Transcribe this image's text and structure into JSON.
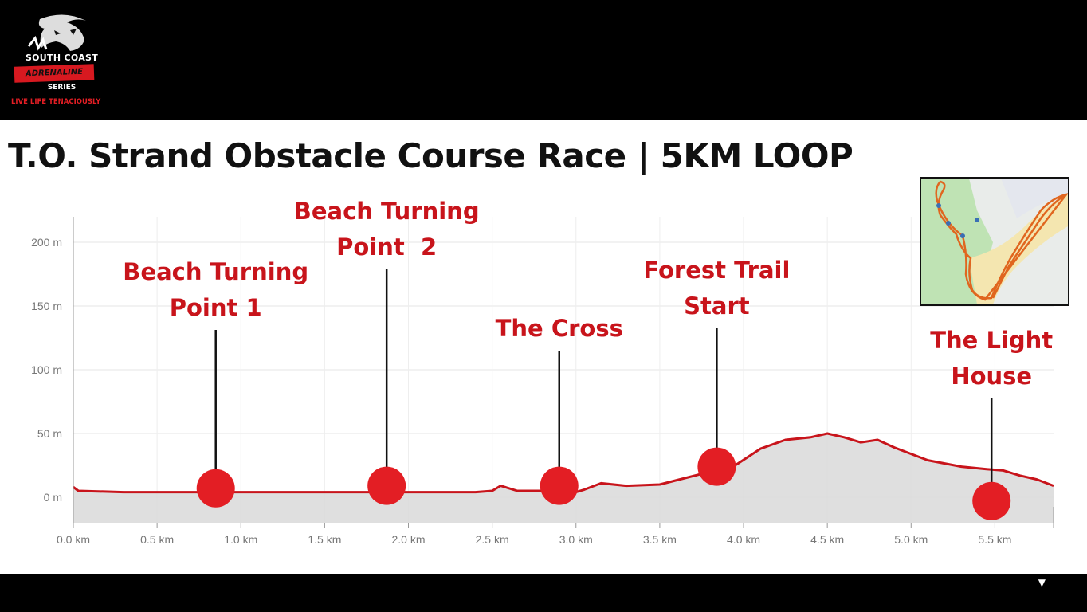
{
  "logo": {
    "brand_top": "SOUTH COAST",
    "brand_badge": "ADRENALINE",
    "brand_series": "SERIES",
    "tagline": "LIVE LIFE TENACIOUSLY"
  },
  "title": "T.O. Strand Obstacle Course Race | 5KM LOOP",
  "colors": {
    "line": "#c8141b",
    "marker": "#e31e24",
    "label": "#c8141b",
    "fill": "#d9d9d9"
  },
  "chart_data": {
    "type": "area",
    "title": "T.O. Strand Obstacle Course Race | 5KM LOOP",
    "xlabel": "",
    "ylabel": "",
    "xlim": [
      0,
      5.85
    ],
    "ylim": [
      -20,
      220
    ],
    "grid": true,
    "x_ticks": [
      "0.0 km",
      "0.5 km",
      "1.0 km",
      "1.5 km",
      "2.0 km",
      "2.5 km",
      "3.0 km",
      "3.5 km",
      "4.0 km",
      "4.5 km",
      "5.0 km",
      "5.5 km"
    ],
    "x_tick_values": [
      0,
      0.5,
      1.0,
      1.5,
      2.0,
      2.5,
      3.0,
      3.5,
      4.0,
      4.5,
      5.0,
      5.5
    ],
    "y_ticks": [
      "0 m",
      "50 m",
      "100 m",
      "150 m",
      "200 m"
    ],
    "y_tick_values": [
      0,
      50,
      100,
      150,
      200
    ],
    "series": [
      {
        "x": [
          0,
          0.03,
          0.3,
          0.6,
          0.9,
          1.2,
          1.5,
          1.8,
          2.1,
          2.4,
          2.5,
          2.55,
          2.65,
          2.8,
          2.9,
          3.0,
          3.05,
          3.15,
          3.3,
          3.5,
          3.65,
          3.8,
          3.95,
          4.1,
          4.25,
          4.4,
          4.5,
          4.6,
          4.7,
          4.8,
          4.9,
          5.0,
          5.1,
          5.3,
          5.45,
          5.55,
          5.65,
          5.75,
          5.85
        ],
        "y": [
          8,
          5,
          4,
          4,
          4,
          4,
          4,
          4,
          4,
          4,
          5,
          9,
          5,
          5,
          4,
          4,
          6,
          11,
          9,
          10,
          15,
          20,
          25,
          38,
          45,
          47,
          50,
          47,
          43,
          45,
          39,
          34,
          29,
          24,
          22,
          21,
          17,
          14,
          9
        ]
      }
    ],
    "points_of_interest": [
      {
        "x": 0.85,
        "y": 7,
        "label": [
          "Beach Turning",
          "Point 1"
        ]
      },
      {
        "x": 1.87,
        "y": 9,
        "label": [
          "Beach Turning",
          "Point  2"
        ]
      },
      {
        "x": 2.9,
        "y": 9,
        "label": [
          "The Cross"
        ]
      },
      {
        "x": 3.84,
        "y": 24,
        "label": [
          "Forest Trail",
          "Start"
        ]
      },
      {
        "x": 5.48,
        "y": -3,
        "label": [
          "The Light",
          "House"
        ]
      }
    ]
  }
}
